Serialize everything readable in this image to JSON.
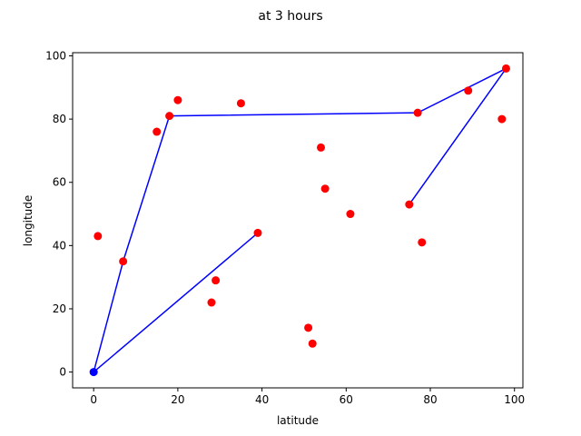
{
  "chart_data": {
    "type": "scatter",
    "title": "at 3 hours",
    "xlabel": "latitude",
    "ylabel": "longitude",
    "xlim": [
      -5,
      102
    ],
    "ylim": [
      -5,
      101
    ],
    "xticks": [
      0,
      20,
      40,
      60,
      80,
      100
    ],
    "yticks": [
      0,
      20,
      40,
      60,
      80,
      100
    ],
    "grid": false,
    "colors": {
      "points": "#ff0000",
      "route": "#0000ff",
      "origin": "#0000ff",
      "axes": "#000000"
    },
    "points": [
      {
        "x": 1,
        "y": 43
      },
      {
        "x": 7,
        "y": 35
      },
      {
        "x": 15,
        "y": 76
      },
      {
        "x": 18,
        "y": 81
      },
      {
        "x": 20,
        "y": 86
      },
      {
        "x": 28,
        "y": 22
      },
      {
        "x": 29,
        "y": 29
      },
      {
        "x": 35,
        "y": 85
      },
      {
        "x": 39,
        "y": 44
      },
      {
        "x": 51,
        "y": 14
      },
      {
        "x": 52,
        "y": 9
      },
      {
        "x": 54,
        "y": 71
      },
      {
        "x": 55,
        "y": 58
      },
      {
        "x": 61,
        "y": 50
      },
      {
        "x": 75,
        "y": 53
      },
      {
        "x": 77,
        "y": 82
      },
      {
        "x": 78,
        "y": 41
      },
      {
        "x": 89,
        "y": 89
      },
      {
        "x": 97,
        "y": 80
      },
      {
        "x": 98,
        "y": 96
      }
    ],
    "routes": [
      [
        {
          "x": 0,
          "y": 0
        },
        {
          "x": 7,
          "y": 35
        },
        {
          "x": 18,
          "y": 81
        },
        {
          "x": 77,
          "y": 82
        },
        {
          "x": 98,
          "y": 96
        },
        {
          "x": 75,
          "y": 53
        }
      ],
      [
        {
          "x": 0,
          "y": 0
        },
        {
          "x": 39,
          "y": 44
        }
      ]
    ],
    "origin": {
      "x": 0,
      "y": 0
    }
  }
}
